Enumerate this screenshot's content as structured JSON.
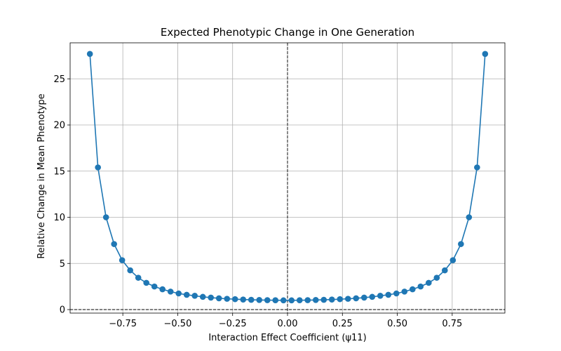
{
  "chart_data": {
    "type": "line",
    "title": "Expected Phenotypic Change in One Generation",
    "xlabel": "Interaction Effect Coefficient (ψ11)",
    "ylabel": "Relative Change in Mean Phenotype",
    "xlim": [
      -0.99,
      0.99
    ],
    "ylim": [
      -0.38,
      28.9
    ],
    "xticks": [
      -0.75,
      -0.5,
      -0.25,
      0.0,
      0.25,
      0.5,
      0.75
    ],
    "xtick_labels": [
      "−0.75",
      "−0.50",
      "−0.25",
      "0.00",
      "0.25",
      "0.50",
      "0.75"
    ],
    "yticks": [
      0,
      5,
      10,
      15,
      20,
      25
    ],
    "ytick_labels": [
      "0",
      "5",
      "10",
      "15",
      "20",
      "25"
    ],
    "grid": true,
    "reference_lines": {
      "horizontal_y": 0,
      "vertical_x": 0,
      "style": "dashed",
      "color": "#000000"
    },
    "series": [
      {
        "color": "#1f77b4",
        "marker": "circle",
        "x": [
          -0.9,
          -0.8633,
          -0.8265,
          -0.7898,
          -0.7531,
          -0.7163,
          -0.6796,
          -0.6429,
          -0.6061,
          -0.5694,
          -0.5327,
          -0.4959,
          -0.4592,
          -0.4224,
          -0.3857,
          -0.349,
          -0.3122,
          -0.2755,
          -0.2388,
          -0.202,
          -0.1653,
          -0.1286,
          -0.0918,
          -0.0551,
          -0.0184,
          0.0184,
          0.0551,
          0.0918,
          0.1286,
          0.1653,
          0.202,
          0.2388,
          0.2755,
          0.3122,
          0.349,
          0.3857,
          0.4224,
          0.4592,
          0.4959,
          0.5327,
          0.5694,
          0.6061,
          0.6429,
          0.6796,
          0.7163,
          0.7531,
          0.7898,
          0.8265,
          0.8633,
          0.9
        ],
        "y": [
          27.7,
          15.4,
          10.0,
          7.1,
          5.35,
          4.25,
          3.45,
          2.9,
          2.5,
          2.2,
          1.95,
          1.75,
          1.6,
          1.5,
          1.38,
          1.3,
          1.22,
          1.17,
          1.13,
          1.09,
          1.06,
          1.04,
          1.02,
          1.01,
          1.0,
          1.0,
          1.01,
          1.02,
          1.04,
          1.06,
          1.09,
          1.13,
          1.17,
          1.22,
          1.3,
          1.38,
          1.5,
          1.6,
          1.75,
          1.95,
          2.2,
          2.5,
          2.9,
          3.45,
          4.25,
          5.35,
          7.1,
          10.0,
          15.4,
          27.7
        ]
      }
    ]
  }
}
